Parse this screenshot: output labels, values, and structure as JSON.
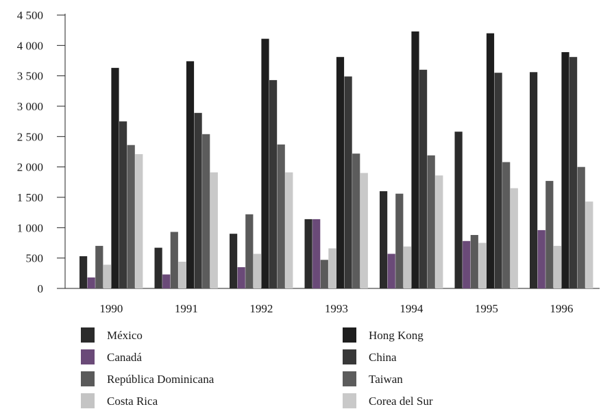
{
  "chart_data": {
    "type": "bar",
    "title": "",
    "xlabel": "",
    "ylabel": "",
    "ylim": [
      0,
      4500
    ],
    "yticks": [
      0,
      500,
      1000,
      1500,
      2000,
      2500,
      3000,
      3500,
      4000,
      4500
    ],
    "ytick_labels": [
      "0",
      "500",
      "1 000",
      "1 500",
      "2 000",
      "2 500",
      "3 000",
      "3 500",
      "4 000",
      "4 500"
    ],
    "categories": [
      "1990",
      "1991",
      "1992",
      "1993",
      "1994",
      "1995",
      "1996"
    ],
    "grid": false,
    "legend_position": "bottom",
    "series": [
      {
        "name": "México",
        "color": "#2b2b2b",
        "values": [
          530,
          670,
          900,
          1140,
          1600,
          2580,
          3560
        ]
      },
      {
        "name": "Canadá",
        "color": "#6a4a78",
        "values": [
          180,
          230,
          350,
          1140,
          570,
          780,
          960
        ]
      },
      {
        "name": "República Dominicana",
        "color": "#5a5a5a",
        "values": [
          700,
          930,
          1220,
          470,
          1560,
          880,
          1770
        ]
      },
      {
        "name": "Costa Rica",
        "color": "#c4c4c4",
        "values": [
          390,
          440,
          570,
          660,
          690,
          750,
          700
        ]
      },
      {
        "name": "Hong Kong",
        "color": "#1e1e1e",
        "values": [
          3630,
          3740,
          4110,
          3810,
          4230,
          4200,
          3890
        ]
      },
      {
        "name": "China",
        "color": "#383838",
        "values": [
          2750,
          2890,
          3430,
          3490,
          3600,
          3550,
          3810
        ]
      },
      {
        "name": "Taiwan",
        "color": "#5c5c5c",
        "values": [
          2360,
          2540,
          2370,
          2220,
          2190,
          2080,
          2000
        ]
      },
      {
        "name": "Corea del Sur",
        "color": "#c9c9c9",
        "values": [
          2210,
          1910,
          1910,
          1900,
          1860,
          1650,
          1430
        ]
      }
    ]
  }
}
